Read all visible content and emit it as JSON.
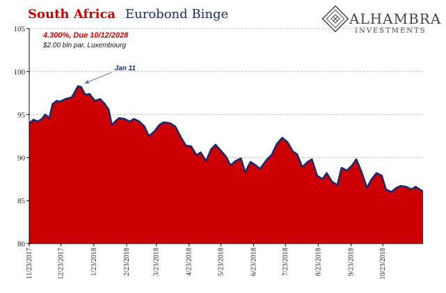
{
  "title": {
    "part1": "South Africa",
    "part2": "Eurobond Binge"
  },
  "subtitle": {
    "line1": "4.300%, Due 10/12/2028",
    "line2": "$2.00 bln par, Luxembourg"
  },
  "logo": {
    "name": "ALHAMBRA",
    "sub": "INVESTMENTS"
  },
  "annotation": {
    "text": "Jan 11",
    "x": "2018-01-11",
    "y": 98.3
  },
  "colors": {
    "fill": "#cc0000",
    "line": "#1a2a6c",
    "grid": "#b0b0b0",
    "title_red": "#cc0000",
    "title_navy": "#1a2a6c"
  },
  "chart_data": {
    "type": "area",
    "title": "South Africa Eurobond Binge",
    "subtitle": "4.300%, Due 10/12/2028 — $2.00 bln par, Luxembourg",
    "xlabel": "",
    "ylabel": "",
    "ylim": [
      80,
      105
    ],
    "yticks": [
      80,
      85,
      90,
      95,
      100,
      105
    ],
    "xlim": [
      "2017-11-23",
      "2018-11-30"
    ],
    "xticks": [
      "2017-11-23",
      "2017-12-23",
      "2018-01-23",
      "2018-02-23",
      "2018-03-23",
      "2018-04-23",
      "2018-05-23",
      "2018-06-23",
      "2018-07-23",
      "2018-08-23",
      "2018-09-23",
      "2018-10-23"
    ],
    "xtick_labels": [
      "11/23/2017",
      "12/23/2017",
      "1/23/2018",
      "2/23/2018",
      "3/23/2018",
      "4/23/2018",
      "5/23/2018",
      "6/23/2018",
      "7/23/2018",
      "8/23/2018",
      "9/23/2018",
      "10/23/2018"
    ],
    "grid": "horizontal dashed",
    "legend": "none",
    "series": [
      {
        "x": [
          "2017-11-23",
          "2017-11-27",
          "2017-12-01",
          "2017-12-05",
          "2017-12-08",
          "2017-12-12",
          "2017-12-15",
          "2017-12-19",
          "2017-12-22",
          "2017-12-27",
          "2018-01-02",
          "2018-01-05",
          "2018-01-08",
          "2018-01-11",
          "2018-01-15",
          "2018-01-19",
          "2018-01-24",
          "2018-01-29",
          "2018-02-02",
          "2018-02-06",
          "2018-02-09",
          "2018-02-13",
          "2018-02-16",
          "2018-02-21",
          "2018-02-26",
          "2018-03-02",
          "2018-03-07",
          "2018-03-12",
          "2018-03-16",
          "2018-03-21",
          "2018-03-26",
          "2018-03-30",
          "2018-04-05",
          "2018-04-10",
          "2018-04-16",
          "2018-04-20",
          "2018-04-25",
          "2018-04-30",
          "2018-05-04",
          "2018-05-09",
          "2018-05-14",
          "2018-05-18",
          "2018-05-23",
          "2018-05-28",
          "2018-06-01",
          "2018-06-06",
          "2018-06-11",
          "2018-06-15",
          "2018-06-20",
          "2018-06-25",
          "2018-06-29",
          "2018-07-05",
          "2018-07-10",
          "2018-07-15",
          "2018-07-20",
          "2018-07-25",
          "2018-07-30",
          "2018-08-03",
          "2018-08-08",
          "2018-08-13",
          "2018-08-17",
          "2018-08-22",
          "2018-08-27",
          "2018-08-31",
          "2018-09-05",
          "2018-09-10",
          "2018-09-14",
          "2018-09-19",
          "2018-09-24",
          "2018-09-28",
          "2018-10-03",
          "2018-10-08",
          "2018-10-12",
          "2018-10-17",
          "2018-10-22",
          "2018-10-26",
          "2018-10-31",
          "2018-11-05",
          "2018-11-09",
          "2018-11-14",
          "2018-11-19",
          "2018-11-23",
          "2018-11-28",
          "2018-11-30"
        ],
        "values": [
          94.0,
          94.4,
          94.2,
          94.5,
          95.0,
          94.6,
          96.2,
          96.6,
          96.5,
          96.8,
          97.0,
          97.6,
          98.3,
          98.2,
          97.3,
          97.4,
          96.6,
          96.8,
          96.3,
          95.6,
          93.8,
          94.3,
          94.6,
          94.5,
          94.2,
          94.5,
          94.2,
          93.6,
          92.5,
          93.0,
          93.8,
          94.1,
          94.0,
          93.6,
          92.2,
          91.4,
          91.3,
          90.3,
          90.6,
          89.6,
          91.0,
          91.5,
          90.8,
          90.1,
          89.1,
          89.6,
          89.9,
          88.3,
          89.5,
          89.1,
          88.7,
          89.7,
          90.3,
          91.6,
          92.3,
          91.8,
          90.7,
          90.4,
          88.9,
          89.5,
          89.8,
          87.9,
          87.5,
          88.2,
          87.2,
          86.8,
          88.8,
          88.5,
          89.1,
          89.8,
          88.3,
          86.5,
          87.4,
          88.2,
          87.9,
          86.3,
          86.0,
          86.5,
          86.7,
          86.6,
          86.3,
          86.6,
          86.2,
          86.1
        ]
      }
    ]
  }
}
